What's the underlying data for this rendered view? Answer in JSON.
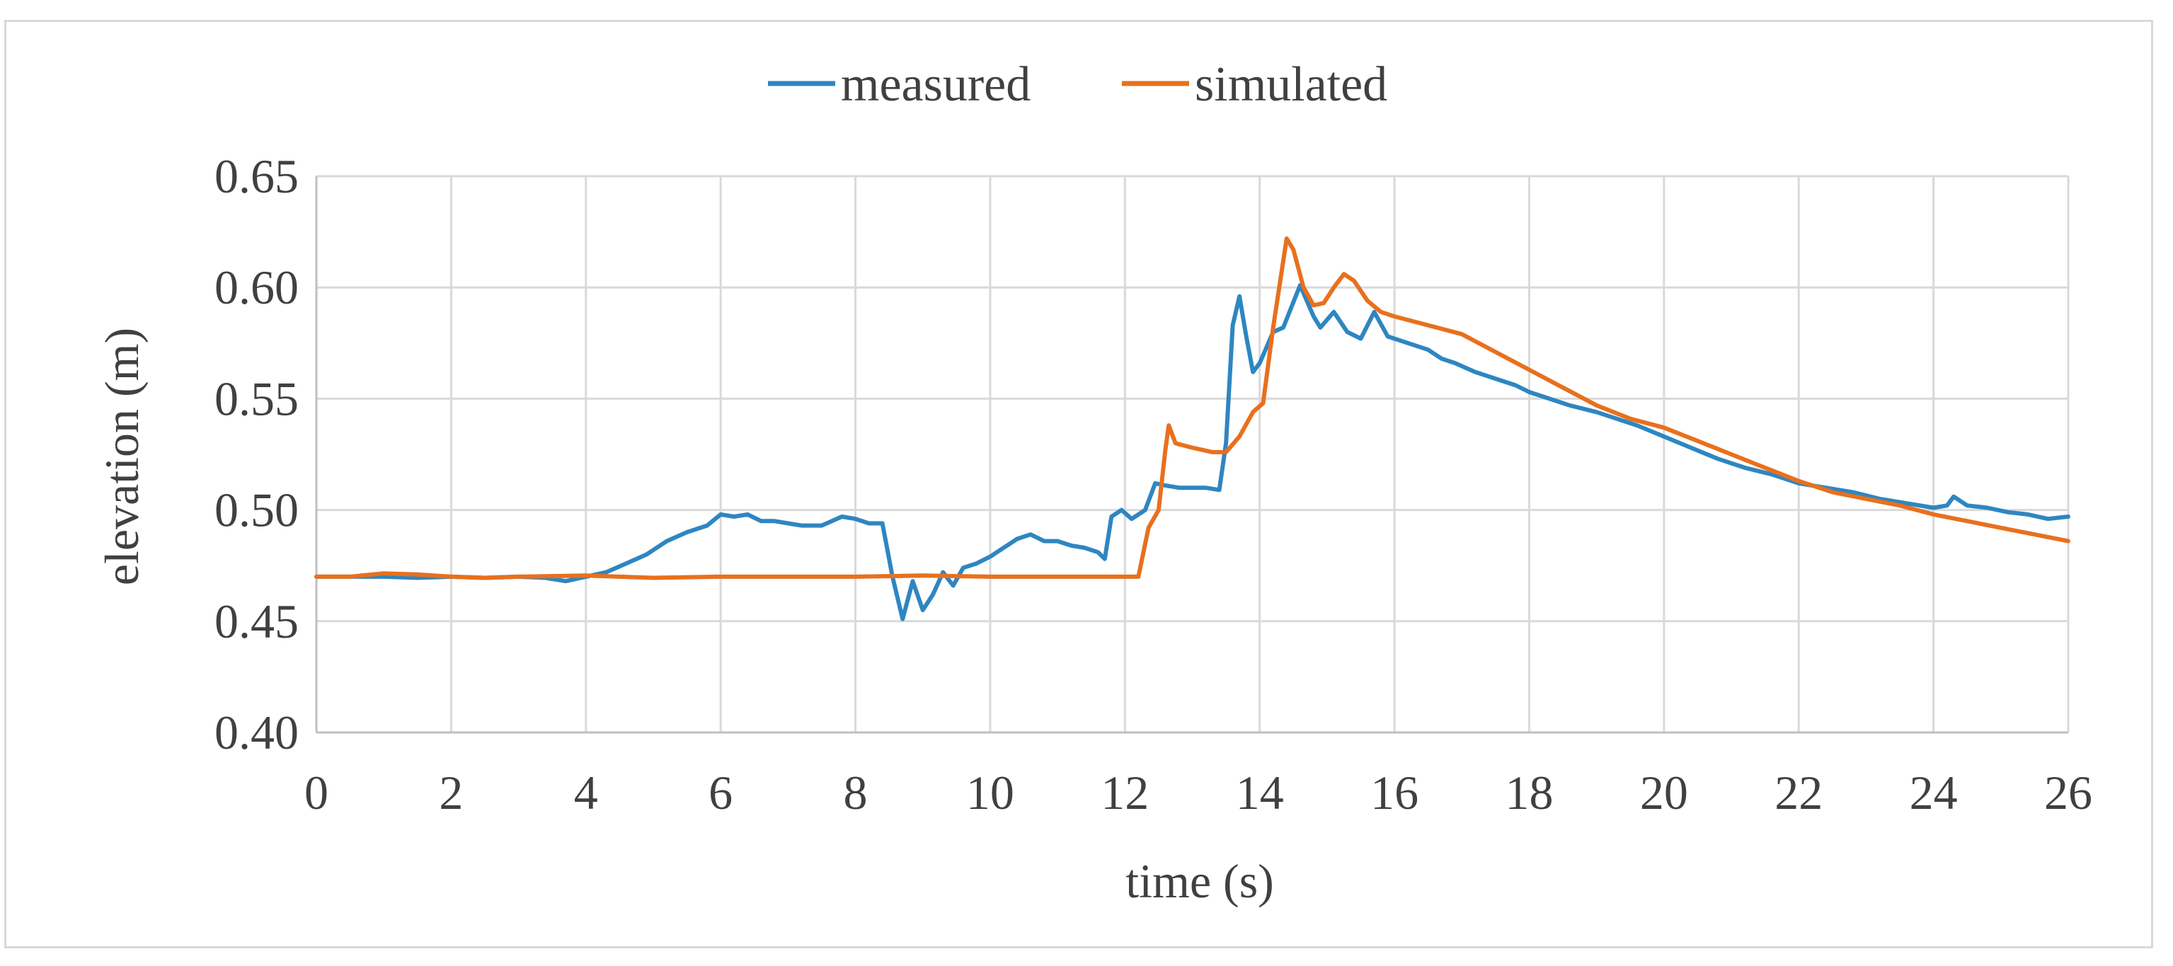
{
  "chart_data": {
    "type": "line",
    "title": "",
    "xlabel": "time (s)",
    "ylabel": "elevation (m)",
    "xlim": [
      0,
      26
    ],
    "ylim": [
      0.4,
      0.65
    ],
    "x_ticks": [
      0,
      2,
      4,
      6,
      8,
      10,
      12,
      14,
      16,
      18,
      20,
      22,
      24,
      26
    ],
    "x_tick_labels": [
      "0",
      "2",
      "4",
      "6",
      "8",
      "10",
      "12",
      "14",
      "16",
      "18",
      "20",
      "22",
      "24",
      "26"
    ],
    "y_ticks": [
      0.4,
      0.45,
      0.5,
      0.55,
      0.6,
      0.65
    ],
    "y_tick_labels": [
      "0.40",
      "0.45",
      "0.50",
      "0.55",
      "0.60",
      "0.65"
    ],
    "grid": true,
    "legend_position": "top-center",
    "series": [
      {
        "name": "measured",
        "color": "#2e86c1",
        "points": [
          [
            0,
            0.47
          ],
          [
            0.5,
            0.47
          ],
          [
            1.0,
            0.47
          ],
          [
            1.5,
            0.4695
          ],
          [
            2.0,
            0.47
          ],
          [
            2.5,
            0.4695
          ],
          [
            3.0,
            0.47
          ],
          [
            3.4,
            0.4695
          ],
          [
            3.7,
            0.468
          ],
          [
            4.0,
            0.47
          ],
          [
            4.3,
            0.472
          ],
          [
            4.6,
            0.476
          ],
          [
            4.9,
            0.48
          ],
          [
            5.2,
            0.486
          ],
          [
            5.5,
            0.49
          ],
          [
            5.8,
            0.493
          ],
          [
            6.0,
            0.498
          ],
          [
            6.2,
            0.497
          ],
          [
            6.4,
            0.498
          ],
          [
            6.6,
            0.495
          ],
          [
            6.8,
            0.495
          ],
          [
            7.0,
            0.494
          ],
          [
            7.2,
            0.493
          ],
          [
            7.5,
            0.493
          ],
          [
            7.8,
            0.497
          ],
          [
            8.0,
            0.496
          ],
          [
            8.2,
            0.494
          ],
          [
            8.4,
            0.494
          ],
          [
            8.55,
            0.47
          ],
          [
            8.7,
            0.451
          ],
          [
            8.85,
            0.468
          ],
          [
            9.0,
            0.455
          ],
          [
            9.15,
            0.462
          ],
          [
            9.3,
            0.472
          ],
          [
            9.45,
            0.466
          ],
          [
            9.6,
            0.474
          ],
          [
            9.8,
            0.476
          ],
          [
            10.0,
            0.479
          ],
          [
            10.2,
            0.483
          ],
          [
            10.4,
            0.487
          ],
          [
            10.6,
            0.489
          ],
          [
            10.8,
            0.486
          ],
          [
            11.0,
            0.486
          ],
          [
            11.2,
            0.484
          ],
          [
            11.4,
            0.483
          ],
          [
            11.6,
            0.481
          ],
          [
            11.7,
            0.478
          ],
          [
            11.8,
            0.497
          ],
          [
            11.95,
            0.5
          ],
          [
            12.1,
            0.496
          ],
          [
            12.3,
            0.5
          ],
          [
            12.45,
            0.512
          ],
          [
            12.6,
            0.511
          ],
          [
            12.8,
            0.51
          ],
          [
            13.0,
            0.51
          ],
          [
            13.2,
            0.51
          ],
          [
            13.4,
            0.509
          ],
          [
            13.5,
            0.53
          ],
          [
            13.6,
            0.583
          ],
          [
            13.7,
            0.596
          ],
          [
            13.8,
            0.578
          ],
          [
            13.9,
            0.562
          ],
          [
            14.0,
            0.566
          ],
          [
            14.2,
            0.58
          ],
          [
            14.35,
            0.582
          ],
          [
            14.6,
            0.601
          ],
          [
            14.8,
            0.587
          ],
          [
            14.9,
            0.582
          ],
          [
            15.1,
            0.589
          ],
          [
            15.3,
            0.58
          ],
          [
            15.5,
            0.577
          ],
          [
            15.7,
            0.589
          ],
          [
            15.9,
            0.578
          ],
          [
            16.2,
            0.575
          ],
          [
            16.5,
            0.572
          ],
          [
            16.7,
            0.568
          ],
          [
            16.9,
            0.566
          ],
          [
            17.2,
            0.562
          ],
          [
            17.5,
            0.559
          ],
          [
            17.8,
            0.556
          ],
          [
            18.0,
            0.553
          ],
          [
            18.3,
            0.55
          ],
          [
            18.6,
            0.547
          ],
          [
            19.0,
            0.544
          ],
          [
            19.3,
            0.541
          ],
          [
            19.6,
            0.538
          ],
          [
            20.0,
            0.533
          ],
          [
            20.4,
            0.528
          ],
          [
            20.8,
            0.523
          ],
          [
            21.2,
            0.519
          ],
          [
            21.6,
            0.516
          ],
          [
            22.0,
            0.512
          ],
          [
            22.4,
            0.51
          ],
          [
            22.8,
            0.508
          ],
          [
            23.2,
            0.505
          ],
          [
            23.6,
            0.503
          ],
          [
            24.0,
            0.501
          ],
          [
            24.2,
            0.502
          ],
          [
            24.3,
            0.506
          ],
          [
            24.5,
            0.502
          ],
          [
            24.8,
            0.501
          ],
          [
            25.1,
            0.499
          ],
          [
            25.4,
            0.498
          ],
          [
            25.7,
            0.496
          ],
          [
            26.0,
            0.497
          ]
        ]
      },
      {
        "name": "simulated",
        "color": "#e8701e",
        "points": [
          [
            0,
            0.47
          ],
          [
            0.5,
            0.47
          ],
          [
            1.0,
            0.4715
          ],
          [
            1.5,
            0.471
          ],
          [
            2.0,
            0.47
          ],
          [
            2.5,
            0.4695
          ],
          [
            3.0,
            0.47
          ],
          [
            4.0,
            0.4705
          ],
          [
            5.0,
            0.4695
          ],
          [
            6.0,
            0.47
          ],
          [
            7.0,
            0.47
          ],
          [
            8.0,
            0.47
          ],
          [
            9.0,
            0.4705
          ],
          [
            10.0,
            0.47
          ],
          [
            11.0,
            0.47
          ],
          [
            12.0,
            0.47
          ],
          [
            12.2,
            0.47
          ],
          [
            12.35,
            0.492
          ],
          [
            12.5,
            0.5
          ],
          [
            12.6,
            0.527
          ],
          [
            12.65,
            0.538
          ],
          [
            12.75,
            0.53
          ],
          [
            13.0,
            0.528
          ],
          [
            13.3,
            0.526
          ],
          [
            13.5,
            0.526
          ],
          [
            13.7,
            0.533
          ],
          [
            13.9,
            0.544
          ],
          [
            14.05,
            0.548
          ],
          [
            14.2,
            0.582
          ],
          [
            14.4,
            0.622
          ],
          [
            14.5,
            0.617
          ],
          [
            14.65,
            0.6
          ],
          [
            14.8,
            0.592
          ],
          [
            14.95,
            0.593
          ],
          [
            15.1,
            0.6
          ],
          [
            15.25,
            0.606
          ],
          [
            15.4,
            0.603
          ],
          [
            15.6,
            0.594
          ],
          [
            15.8,
            0.589
          ],
          [
            16.0,
            0.587
          ],
          [
            16.5,
            0.583
          ],
          [
            17.0,
            0.579
          ],
          [
            17.5,
            0.571
          ],
          [
            18.0,
            0.563
          ],
          [
            18.5,
            0.555
          ],
          [
            19.0,
            0.547
          ],
          [
            19.5,
            0.541
          ],
          [
            20.0,
            0.537
          ],
          [
            20.5,
            0.531
          ],
          [
            21.0,
            0.525
          ],
          [
            21.5,
            0.519
          ],
          [
            22.0,
            0.513
          ],
          [
            22.5,
            0.508
          ],
          [
            23.0,
            0.505
          ],
          [
            23.5,
            0.502
          ],
          [
            24.0,
            0.498
          ],
          [
            24.5,
            0.495
          ],
          [
            25.0,
            0.492
          ],
          [
            25.5,
            0.489
          ],
          [
            26.0,
            0.486
          ]
        ]
      }
    ]
  }
}
